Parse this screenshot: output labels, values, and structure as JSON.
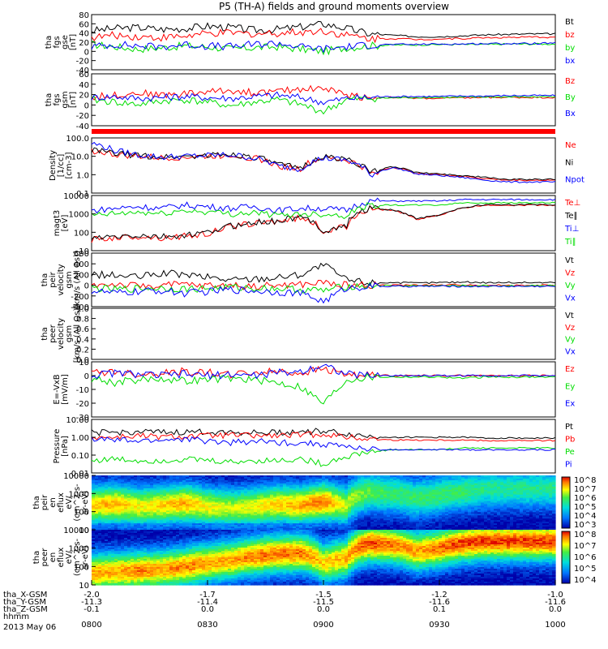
{
  "title": "P5 (TH-A) fields and ground moments overview",
  "date": "2013 May 06",
  "x_axis": {
    "range": [
      800,
      1000
    ],
    "tick_labels": [
      "0800",
      "0830",
      "0900",
      "0930",
      "1000"
    ],
    "rows": [
      {
        "name": "tha_X-GSM",
        "values": [
          "-2.0",
          "-1.7",
          "-1.5",
          "-1.2",
          "-1.0"
        ]
      },
      {
        "name": "tha_Y-GSM",
        "values": [
          "-11.3",
          "-11.4",
          "-11.5",
          "-11.6",
          "-11.6"
        ]
      },
      {
        "name": "tha_Z-GSM",
        "values": [
          "-0.1",
          "0.0",
          "0.0",
          "0.1",
          "0.0"
        ]
      },
      {
        "name": "hhmm",
        "values": []
      }
    ]
  },
  "colors": {
    "black": "#000000",
    "red": "#ff0000",
    "green": "#00dd00",
    "blue": "#0000ff"
  },
  "chart_data": [
    {
      "id": "fgs_gse",
      "type": "line",
      "ylabel": [
        "tha",
        "fgs",
        "gse",
        "[nT]"
      ],
      "yticks": [
        "80",
        "60",
        "40",
        "20",
        "0",
        "-20",
        "-40"
      ],
      "ylim": [
        -40,
        80
      ],
      "series": [
        {
          "name": "Bt",
          "color": "black",
          "values": [
            45,
            50,
            52,
            48,
            50,
            55,
            52,
            46,
            48,
            53,
            60,
            50,
            38,
            35,
            32,
            32,
            34,
            36,
            37,
            38,
            38
          ]
        },
        {
          "name": "bz",
          "color": "red",
          "values": [
            30,
            35,
            32,
            30,
            33,
            38,
            40,
            38,
            40,
            42,
            45,
            35,
            28,
            28,
            26,
            27,
            28,
            30,
            30,
            31,
            31
          ]
        },
        {
          "name": "by",
          "color": "green",
          "values": [
            15,
            10,
            5,
            8,
            12,
            10,
            5,
            8,
            10,
            5,
            0,
            8,
            12,
            14,
            14,
            15,
            15,
            15,
            16,
            16,
            16
          ]
        },
        {
          "name": "bx",
          "color": "blue",
          "values": [
            10,
            15,
            12,
            10,
            15,
            12,
            10,
            15,
            18,
            10,
            5,
            10,
            14,
            15,
            15,
            16,
            16,
            17,
            17,
            17,
            18
          ]
        }
      ]
    },
    {
      "id": "fgs_gsm",
      "type": "line",
      "ylabel": [
        "tha",
        "fgs",
        "gsm",
        "[nT]"
      ],
      "yticks": [
        "60",
        "40",
        "20",
        "0",
        "-20",
        "-40"
      ],
      "ylim": [
        -50,
        60
      ],
      "series": [
        {
          "name": "Bz",
          "color": "red",
          "values": [
            10,
            15,
            20,
            15,
            18,
            22,
            25,
            20,
            22,
            28,
            30,
            15,
            10,
            10,
            8,
            8,
            9,
            10,
            10,
            10,
            10
          ]
        },
        {
          "name": "By",
          "color": "green",
          "values": [
            5,
            0,
            -5,
            2,
            5,
            0,
            -8,
            0,
            5,
            -5,
            -20,
            5,
            8,
            9,
            10,
            10,
            10,
            11,
            11,
            11,
            12
          ]
        },
        {
          "name": "Bx",
          "color": "blue",
          "values": [
            10,
            12,
            8,
            10,
            12,
            10,
            8,
            12,
            15,
            10,
            0,
            8,
            10,
            12,
            12,
            12,
            13,
            13,
            14,
            14,
            14
          ]
        }
      ]
    },
    {
      "id": "density",
      "type": "line",
      "scale": "log",
      "ylabel": [
        "Density",
        "[1/cc]",
        "[cm-3]"
      ],
      "yticks": [
        "100.0",
        "10.0",
        "1.0",
        "0.1"
      ],
      "ylim": [
        0.1,
        100
      ],
      "series": [
        {
          "name": "Ne",
          "color": "red",
          "values": [
            20,
            12,
            10,
            8,
            9,
            10,
            12,
            8,
            3,
            2,
            8,
            6,
            1.0,
            2.5,
            1.2,
            1.0,
            0.8,
            0.6,
            0.5,
            0.5,
            0.5
          ]
        },
        {
          "name": "Ni",
          "color": "black",
          "values": [
            22,
            14,
            11,
            9,
            10,
            11,
            13,
            9,
            3.5,
            2.2,
            9,
            7,
            1.1,
            2.8,
            1.3,
            1.1,
            0.9,
            0.7,
            0.55,
            0.55,
            0.55
          ]
        },
        {
          "name": "Npot",
          "color": "blue",
          "values": [
            50,
            20,
            12,
            9,
            10,
            11,
            12,
            8,
            3,
            2,
            8,
            6,
            0.9,
            2.4,
            1.1,
            0.9,
            0.7,
            0.5,
            0.4,
            0.4,
            0.4
          ]
        }
      ]
    },
    {
      "id": "temperature",
      "type": "line",
      "scale": "log",
      "ylabel": [
        "magt3",
        "[eV]"
      ],
      "yticks": [
        "10000",
        "1000",
        "100",
        "10"
      ],
      "ylim": [
        10,
        10000
      ],
      "series": [
        {
          "name": "Te⊥",
          "color": "red",
          "values": [
            40,
            50,
            60,
            50,
            60,
            80,
            200,
            300,
            400,
            600,
            100,
            200,
            2000,
            1500,
            500,
            800,
            2000,
            3000,
            3000,
            3000,
            3000
          ]
        },
        {
          "name": "Te∥",
          "color": "black",
          "values": [
            45,
            55,
            65,
            55,
            65,
            90,
            220,
            330,
            420,
            650,
            110,
            220,
            2100,
            1600,
            550,
            850,
            2100,
            3200,
            3200,
            3200,
            3200
          ]
        },
        {
          "name": "Ti⊥",
          "color": "blue",
          "values": [
            1500,
            2000,
            2500,
            2000,
            3000,
            2500,
            2000,
            2500,
            1500,
            2000,
            2000,
            1500,
            5000,
            5000,
            5000,
            5000,
            6000,
            6000,
            6000,
            6000,
            6000
          ]
        },
        {
          "name": "Ti∥",
          "color": "green",
          "values": [
            800,
            1000,
            1200,
            1000,
            1500,
            1300,
            1000,
            1200,
            800,
            1000,
            1000,
            800,
            3000,
            3000,
            3000,
            3000,
            4000,
            4000,
            4000,
            4000,
            4000
          ]
        }
      ]
    },
    {
      "id": "peir_velocity",
      "type": "line",
      "ylabel": [
        "tha",
        "peir",
        "velocity",
        "gsm",
        "[km/s (All Qs)]"
      ],
      "yticks": [
        "600",
        "400",
        "200",
        "0",
        "-200",
        "-400"
      ],
      "ylim": [
        -400,
        600
      ],
      "series": [
        {
          "name": "Vt",
          "color": "black",
          "values": [
            200,
            180,
            150,
            220,
            200,
            150,
            100,
            120,
            150,
            200,
            380,
            100,
            50,
            50,
            40,
            50,
            60,
            50,
            50,
            50,
            50
          ]
        },
        {
          "name": "Vz",
          "color": "red",
          "values": [
            0,
            20,
            -20,
            0,
            10,
            -10,
            0,
            -20,
            0,
            10,
            50,
            0,
            10,
            0,
            5,
            0,
            10,
            0,
            0,
            0,
            0
          ]
        },
        {
          "name": "Vy",
          "color": "green",
          "values": [
            -50,
            -80,
            -60,
            -50,
            -70,
            -60,
            -40,
            -50,
            -60,
            -80,
            -100,
            -20,
            -10,
            -10,
            -10,
            -10,
            -10,
            -10,
            -10,
            -10,
            -10
          ]
        },
        {
          "name": "Vx",
          "color": "blue",
          "values": [
            -100,
            -150,
            -120,
            -100,
            -150,
            -120,
            -80,
            -100,
            -120,
            -150,
            -300,
            -50,
            -20,
            -20,
            -20,
            -20,
            -20,
            -20,
            -20,
            -20,
            -20
          ]
        }
      ]
    },
    {
      "id": "peer_velocity",
      "type": "line",
      "ylabel": [
        "tha",
        "peer",
        "velocity",
        "gsm",
        "[km/s (All Qs)]"
      ],
      "yticks": [
        "1.0",
        "0.8",
        "0.6",
        "0.4",
        "0.2",
        "0.0"
      ],
      "ylim": [
        0,
        1
      ],
      "series": [
        {
          "name": "Vt",
          "color": "black",
          "values": []
        },
        {
          "name": "Vz",
          "color": "red",
          "values": []
        },
        {
          "name": "Vy",
          "color": "green",
          "values": []
        },
        {
          "name": "Vx",
          "color": "blue",
          "values": []
        }
      ]
    },
    {
      "id": "efield",
      "type": "line",
      "ylabel": [
        "E=-VxB",
        "[mV/m]"
      ],
      "yticks": [
        "10",
        "0",
        "-10",
        "-20",
        "-30"
      ],
      "ylim": [
        -30,
        10
      ],
      "series": [
        {
          "name": "Ez",
          "color": "red",
          "values": [
            2,
            3,
            1,
            2,
            3,
            2,
            1,
            2,
            3,
            2,
            5,
            1,
            0,
            0,
            0,
            0,
            0,
            0,
            0,
            0,
            0
          ]
        },
        {
          "name": "Ey",
          "color": "green",
          "values": [
            -2,
            -5,
            -3,
            -2,
            -4,
            -3,
            -2,
            -3,
            -5,
            -8,
            -20,
            -3,
            -1,
            -1,
            -1,
            -1,
            -2,
            -1,
            -1,
            -1,
            -1
          ]
        },
        {
          "name": "Ex",
          "color": "blue",
          "values": [
            0,
            2,
            1,
            0,
            1,
            0,
            1,
            0,
            2,
            3,
            8,
            1,
            0,
            0,
            0,
            0,
            0,
            0,
            0,
            0,
            0
          ]
        }
      ]
    },
    {
      "id": "pressure",
      "type": "line",
      "scale": "log",
      "ylabel": [
        "Pressure",
        "[nPa]"
      ],
      "yticks": [
        "10.00",
        "1.00",
        "0.10",
        "0.01"
      ],
      "ylim": [
        0.01,
        10
      ],
      "series": [
        {
          "name": "Pt",
          "color": "black",
          "values": [
            1.8,
            1.8,
            2.0,
            1.8,
            1.9,
            2.0,
            2.0,
            1.8,
            1.9,
            2.0,
            2.2,
            1.5,
            1.1,
            1.0,
            1.0,
            1.0,
            1.0,
            0.9,
            0.9,
            0.9,
            0.9
          ]
        },
        {
          "name": "Pb",
          "color": "red",
          "values": [
            1.0,
            1.0,
            1.2,
            1.0,
            1.1,
            1.2,
            1.3,
            1.2,
            1.2,
            1.3,
            1.5,
            1.0,
            0.8,
            0.7,
            0.7,
            0.7,
            0.7,
            0.65,
            0.65,
            0.65,
            0.65
          ]
        },
        {
          "name": "Pe",
          "color": "green",
          "values": [
            0.05,
            0.06,
            0.05,
            0.05,
            0.06,
            0.05,
            0.04,
            0.05,
            0.05,
            0.06,
            0.03,
            0.08,
            0.15,
            0.2,
            0.2,
            0.2,
            0.25,
            0.25,
            0.25,
            0.25,
            0.25
          ]
        },
        {
          "name": "Pi",
          "color": "blue",
          "values": [
            0.8,
            0.7,
            0.6,
            0.7,
            0.8,
            0.6,
            0.5,
            0.6,
            0.5,
            0.5,
            0.4,
            0.3,
            0.2,
            0.2,
            0.2,
            0.2,
            0.2,
            0.2,
            0.2,
            0.2,
            0.2
          ]
        }
      ]
    },
    {
      "id": "peir_spec",
      "type": "heatmap",
      "scale": "log",
      "ylabel": [
        "tha",
        "peir",
        "en",
        "eflux",
        "eV/",
        "(cm^2-s-",
        "sr-eV)"
      ],
      "yticks": [
        "10000",
        "1000",
        "100",
        "10"
      ],
      "ylim": [
        10,
        20000
      ],
      "colorbar": {
        "ticks": [
          "10^8",
          "10^7",
          "10^6",
          "10^5",
          "10^4",
          "10^3"
        ]
      },
      "peak_energy": [
        300,
        350,
        250,
        300,
        400,
        250,
        200,
        250,
        350,
        300,
        500,
        300,
        2000,
        1500,
        800,
        1200,
        2000,
        3000,
        3000,
        3000,
        3000
      ],
      "level": [
        0.8,
        0.85,
        0.75,
        0.8,
        0.85,
        0.75,
        0.7,
        0.75,
        0.8,
        0.85,
        0.9,
        0.7,
        0.6,
        0.55,
        0.55,
        0.55,
        0.55,
        0.5,
        0.5,
        0.5,
        0.5
      ]
    },
    {
      "id": "peer_spec",
      "type": "heatmap",
      "scale": "log",
      "ylabel": [
        "tha",
        "peer",
        "en",
        "eflux",
        "eV/",
        "(cm^2-s-",
        "sr-eV)"
      ],
      "yticks": [
        "10000",
        "1000",
        "100",
        "10"
      ],
      "ylim": [
        10,
        20000
      ],
      "colorbar": {
        "ticks": [
          "10^8",
          "10^7",
          "10^6",
          "10^5",
          "10^4"
        ]
      },
      "peak_energy": [
        50,
        60,
        70,
        80,
        120,
        200,
        300,
        500,
        700,
        800,
        200,
        400,
        3000,
        2500,
        1000,
        1500,
        3000,
        4000,
        4000,
        4000,
        4000
      ],
      "level": [
        0.85,
        0.85,
        0.9,
        0.85,
        0.9,
        0.85,
        0.85,
        0.9,
        0.9,
        0.9,
        0.8,
        0.85,
        0.95,
        0.9,
        0.85,
        0.9,
        0.95,
        0.95,
        0.95,
        0.95,
        0.95
      ]
    }
  ]
}
